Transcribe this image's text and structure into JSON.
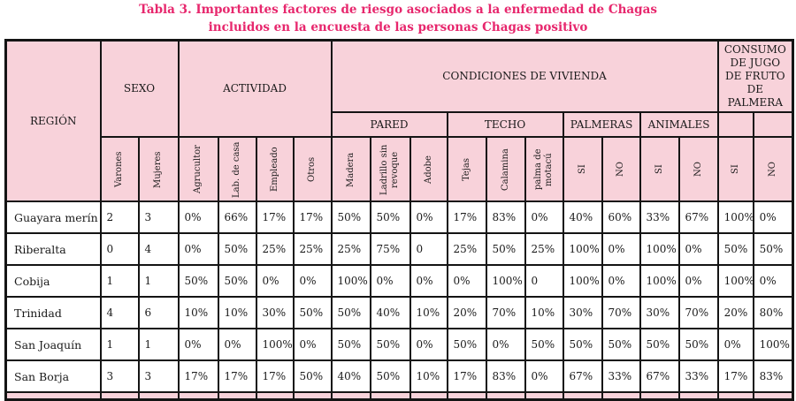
{
  "title": {
    "line1": "Tabla 3. Importantes factores de riesgo asociados a la enfermedad de Chagas",
    "line2": "incluidos en la encuesta de las personas Chagas positivo"
  },
  "colors": {
    "header_bg": "#f8d2da",
    "title_text": "#e7276d",
    "border": "#141414",
    "row_bg": "#ffffff"
  },
  "chart_data": {
    "type": "table",
    "title": "Tabla 3. Importantes factores de riesgo asociados a la enfermedad de Chagas incluidos en la encuesta de las personas Chagas positivo",
    "region_header": "REGIÓN",
    "groups_top": [
      {
        "label": "SEXO",
        "colspan": 2,
        "rowspan": 2
      },
      {
        "label": "ACTIVIDAD",
        "colspan": 4,
        "rowspan": 2
      },
      {
        "label": "CONDICIONES DE VIVIENDA",
        "colspan": 10,
        "rowspan": 1
      },
      {
        "label": "CONSUMO DE JUGO DE FRUTO DE PALMERA",
        "colspan": 2,
        "rowspan": 1
      }
    ],
    "groups_mid": [
      {
        "label": "PARED",
        "colspan": 3
      },
      {
        "label": "TECHO",
        "colspan": 3
      },
      {
        "label": "PALMERAS",
        "colspan": 2
      },
      {
        "label": "ANIMALES",
        "colspan": 2
      },
      {
        "label": "",
        "colspan": 1
      },
      {
        "label": "",
        "colspan": 1
      }
    ],
    "column_headers": [
      "Varones",
      "Mujeres",
      "Agrucultor",
      "Lab. de casa",
      "Empleado",
      "Otros",
      "Madera",
      "Ladrillo sin revoque",
      "Adobe",
      "Tejas",
      "Calamina",
      "palma de motacú",
      "SI",
      "NO",
      "SI",
      "NO",
      "SI",
      "NO"
    ],
    "rows": [
      {
        "region": "Guayara merín",
        "values": [
          "2",
          "3",
          "0%",
          "66%",
          "17%",
          "17%",
          "50%",
          "50%",
          "0%",
          "17%",
          "83%",
          "0%",
          "40%",
          "60%",
          "33%",
          "67%",
          "100%",
          "0%"
        ]
      },
      {
        "region": "Riberalta",
        "values": [
          "0",
          "4",
          "0%",
          "50%",
          "25%",
          "25%",
          "25%",
          "75%",
          "0",
          "25%",
          "50%",
          "25%",
          "100%",
          "0%",
          "100%",
          "0%",
          "50%",
          "50%"
        ]
      },
      {
        "region": "Cobija",
        "values": [
          "1",
          "1",
          "50%",
          "50%",
          "0%",
          "0%",
          "100%",
          "0%",
          "0%",
          "0%",
          "100%",
          "0",
          "100%",
          "0%",
          "100%",
          "0%",
          "100%",
          "0%"
        ]
      },
      {
        "region": "Trinidad",
        "values": [
          "4",
          "6",
          "10%",
          "10%",
          "30%",
          "50%",
          "50%",
          "40%",
          "10%",
          "20%",
          "70%",
          "10%",
          "30%",
          "70%",
          "30%",
          "70%",
          "20%",
          "80%"
        ]
      },
      {
        "region": "San Joaquín",
        "values": [
          "1",
          "1",
          "0%",
          "0%",
          "100%",
          "0%",
          "50%",
          "50%",
          "0%",
          "50%",
          "0%",
          "50%",
          "50%",
          "50%",
          "50%",
          "50%",
          "0%",
          "100%"
        ]
      },
      {
        "region": "San Borja",
        "values": [
          "3",
          "3",
          "17%",
          "17%",
          "17%",
          "50%",
          "40%",
          "50%",
          "10%",
          "17%",
          "83%",
          "0%",
          "67%",
          "33%",
          "67%",
          "33%",
          "17%",
          "83%"
        ]
      }
    ]
  }
}
